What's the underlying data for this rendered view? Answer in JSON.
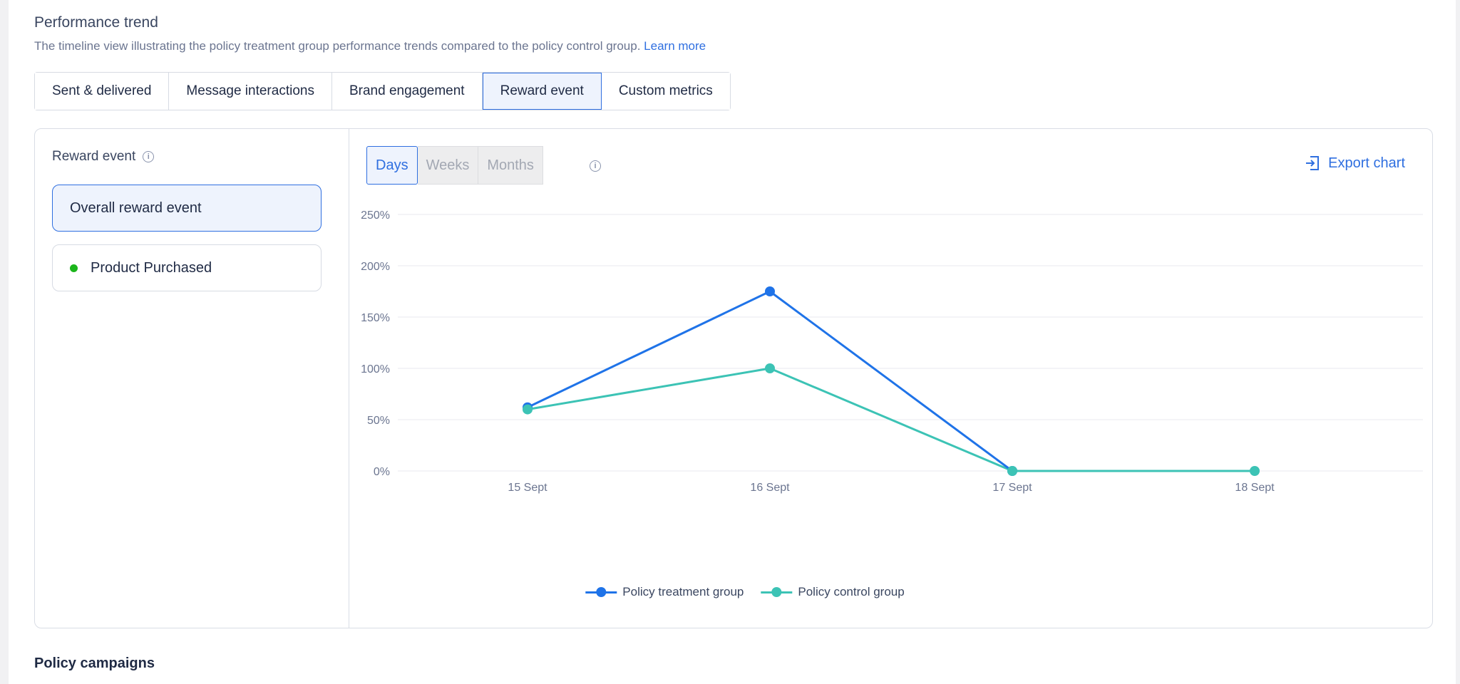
{
  "header": {
    "title": "Performance trend",
    "description": "The timeline view illustrating the policy treatment group performance trends compared to the policy control group.",
    "learn_more": "Learn more"
  },
  "tabs": [
    {
      "label": "Sent & delivered"
    },
    {
      "label": "Message interactions"
    },
    {
      "label": "Brand engagement"
    },
    {
      "label": "Reward event",
      "active": true
    },
    {
      "label": "Custom metrics"
    }
  ],
  "left_panel": {
    "heading": "Reward event",
    "items": [
      {
        "label": "Overall reward event",
        "selected": true
      },
      {
        "label": "Product Purchased",
        "selected": false
      }
    ]
  },
  "granularity": {
    "options": [
      "Days",
      "Weeks",
      "Months"
    ],
    "selected": "Days"
  },
  "export_label": "Export chart",
  "colors": {
    "accent": "#2f6fe0",
    "treatment": "#1f73e8",
    "control": "#3cc3b5",
    "indicator_green": "#1bb51b"
  },
  "chart_data": {
    "type": "line",
    "categories": [
      "15 Sept",
      "16 Sept",
      "17 Sept",
      "18 Sept"
    ],
    "y_ticks": [
      "0%",
      "50%",
      "100%",
      "150%",
      "200%",
      "250%"
    ],
    "ylim": [
      0,
      250
    ],
    "grid": true,
    "legend_position": "bottom",
    "series": [
      {
        "name": "Policy treatment group",
        "values": [
          62,
          175,
          0,
          null
        ]
      },
      {
        "name": "Policy control group",
        "values": [
          60,
          100,
          0,
          0
        ]
      }
    ]
  },
  "footer": {
    "title": "Policy campaigns"
  }
}
